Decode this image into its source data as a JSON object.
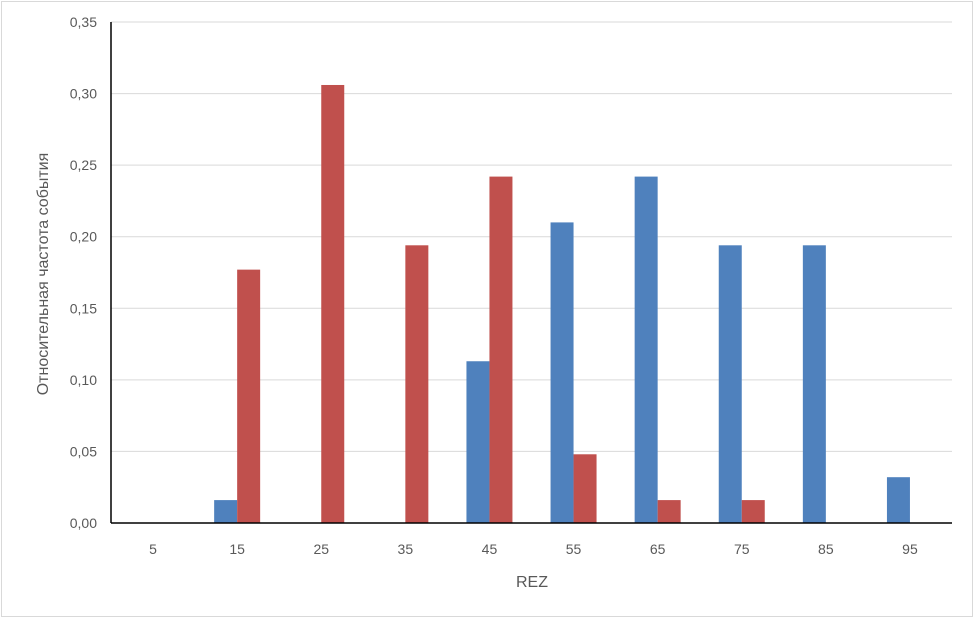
{
  "chart_data": {
    "type": "bar",
    "title": "",
    "xlabel": "REZ",
    "ylabel": "Относительная частота события",
    "categories": [
      "5",
      "15",
      "25",
      "35",
      "45",
      "55",
      "65",
      "75",
      "85",
      "95"
    ],
    "series": [
      {
        "color": "#4f81bd",
        "values": [
          0,
          0.016,
          0,
          0,
          0.113,
          0.21,
          0.242,
          0.194,
          0.194,
          0.032
        ]
      },
      {
        "color": "#c0504d",
        "values": [
          0,
          0.177,
          0.306,
          0.194,
          0.242,
          0.048,
          0.016,
          0.016,
          0,
          0
        ]
      }
    ],
    "ylim": [
      0,
      0.35
    ],
    "yticks": [
      "0,00",
      "0,05",
      "0,10",
      "0,15",
      "0,20",
      "0,25",
      "0,30",
      "0,35"
    ],
    "grid": true,
    "legend": "none"
  }
}
